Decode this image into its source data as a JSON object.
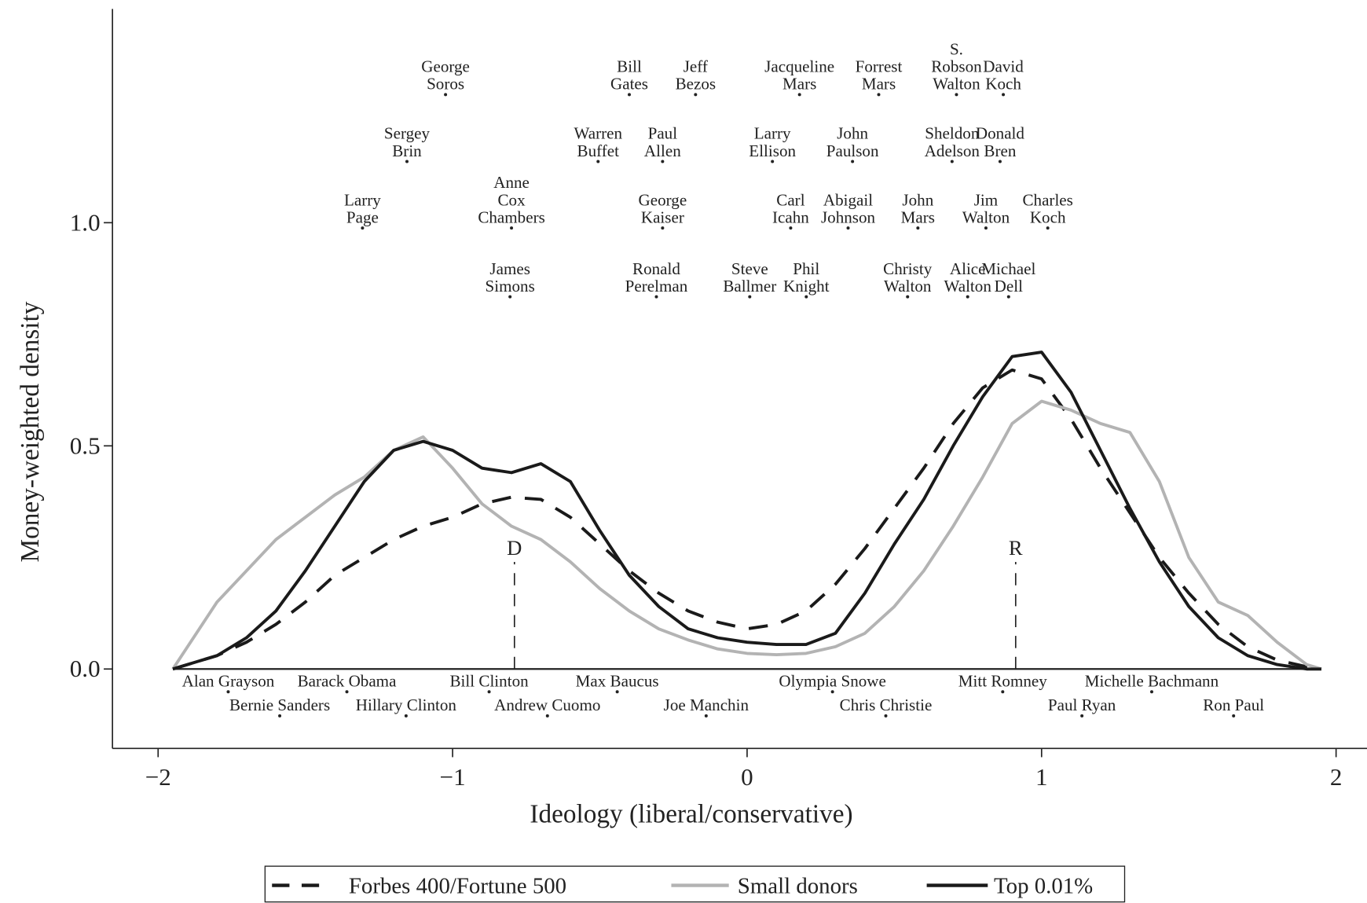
{
  "chart_data": {
    "type": "line",
    "xlabel": "Ideology (liberal/conservative)",
    "ylabel": "Money-weighted density",
    "xlim": [
      -2.155,
      2.105
    ],
    "ylim": [
      -0.178,
      1.479
    ],
    "xticks": [
      {
        "value": -2,
        "label": "−2"
      },
      {
        "value": -1,
        "label": "−1"
      },
      0,
      1,
      2
    ],
    "yticks": [
      {
        "value": 0,
        "label": "0.0"
      },
      {
        "value": 0.5,
        "label": "0.5"
      },
      {
        "value": 1,
        "label": "1.0"
      }
    ],
    "legend": "bottom",
    "x": [
      -1.95,
      -1.8,
      -1.7,
      -1.6,
      -1.5,
      -1.4,
      -1.3,
      -1.2,
      -1.1,
      -1.0,
      -0.9,
      -0.8,
      -0.7,
      -0.6,
      -0.5,
      -0.4,
      -0.3,
      -0.2,
      -0.1,
      0,
      0.1,
      0.2,
      0.3,
      0.4,
      0.5,
      0.6,
      0.7,
      0.8,
      0.9,
      1.0,
      1.1,
      1.2,
      1.3,
      1.4,
      1.5,
      1.6,
      1.7,
      1.8,
      1.9,
      1.95
    ],
    "series": [
      {
        "name": "Forbes 400/Fortune 500",
        "color": "#1a1a1a",
        "style": "dashed",
        "values": [
          0,
          0.03,
          0.06,
          0.1,
          0.15,
          0.21,
          0.25,
          0.29,
          0.32,
          0.34,
          0.37,
          0.385,
          0.38,
          0.34,
          0.28,
          0.22,
          0.17,
          0.13,
          0.105,
          0.09,
          0.1,
          0.13,
          0.19,
          0.27,
          0.36,
          0.45,
          0.55,
          0.63,
          0.67,
          0.65,
          0.56,
          0.45,
          0.35,
          0.25,
          0.17,
          0.1,
          0.05,
          0.02,
          0.005,
          0
        ]
      },
      {
        "name": "Small donors",
        "color": "#b3b3b3",
        "style": "solid",
        "values": [
          0,
          0.15,
          0.22,
          0.29,
          0.34,
          0.39,
          0.43,
          0.49,
          0.52,
          0.45,
          0.37,
          0.32,
          0.29,
          0.24,
          0.18,
          0.13,
          0.09,
          0.065,
          0.045,
          0.035,
          0.032,
          0.035,
          0.05,
          0.08,
          0.14,
          0.22,
          0.32,
          0.43,
          0.55,
          0.6,
          0.58,
          0.55,
          0.53,
          0.42,
          0.25,
          0.15,
          0.12,
          0.06,
          0.01,
          0
        ]
      },
      {
        "name": "Top 0.01%",
        "color": "#1a1a1a",
        "style": "solid",
        "values": [
          0,
          0.03,
          0.07,
          0.13,
          0.22,
          0.32,
          0.42,
          0.49,
          0.51,
          0.49,
          0.45,
          0.44,
          0.46,
          0.42,
          0.31,
          0.21,
          0.14,
          0.09,
          0.07,
          0.06,
          0.055,
          0.055,
          0.08,
          0.17,
          0.28,
          0.38,
          0.5,
          0.61,
          0.7,
          0.71,
          0.62,
          0.49,
          0.36,
          0.24,
          0.14,
          0.07,
          0.03,
          0.01,
          0,
          0
        ]
      }
    ],
    "party_means": [
      {
        "label": "D",
        "x": -0.79,
        "y": 0.24
      },
      {
        "label": "R",
        "x": 0.912,
        "y": 0.24
      }
    ],
    "points": [
      {
        "label": [
          "George",
          "Soros"
        ],
        "x": -1.024,
        "y": 1.287
      },
      {
        "label": [
          "Bill",
          "Gates"
        ],
        "x": -0.4,
        "y": 1.287
      },
      {
        "label": [
          "Jeff",
          "Bezos"
        ],
        "x": -0.175,
        "y": 1.287
      },
      {
        "label": [
          "Jacqueline",
          "Mars"
        ],
        "x": 0.178,
        "y": 1.287
      },
      {
        "label": [
          "Forrest",
          "Mars"
        ],
        "x": 0.447,
        "y": 1.287
      },
      {
        "label": [
          "S.",
          "Robson",
          "Walton"
        ],
        "x": 0.711,
        "y": 1.287
      },
      {
        "label": [
          "David",
          "Koch"
        ],
        "x": 0.87,
        "y": 1.287
      },
      {
        "label": [
          "Sergey",
          "Brin"
        ],
        "x": -1.155,
        "y": 1.137
      },
      {
        "label": [
          "Warren",
          "Buffet"
        ],
        "x": -0.506,
        "y": 1.137
      },
      {
        "label": [
          "Paul",
          "Allen"
        ],
        "x": -0.287,
        "y": 1.137
      },
      {
        "label": [
          "Larry",
          "Ellison"
        ],
        "x": 0.086,
        "y": 1.137
      },
      {
        "label": [
          "John",
          "Paulson"
        ],
        "x": 0.358,
        "y": 1.137
      },
      {
        "label": [
          "Sheldon",
          "Adelson"
        ],
        "x": 0.696,
        "y": 1.137
      },
      {
        "label": [
          "Donald",
          "Bren"
        ],
        "x": 0.859,
        "y": 1.137
      },
      {
        "label": [
          "Larry",
          "Page"
        ],
        "x": -1.306,
        "y": 0.988
      },
      {
        "label": [
          "Anne",
          "Cox",
          "Chambers"
        ],
        "x": -0.8,
        "y": 0.988
      },
      {
        "label": [
          "George",
          "Kaiser"
        ],
        "x": -0.287,
        "y": 0.988
      },
      {
        "label": [
          "Carl",
          "Icahn"
        ],
        "x": 0.148,
        "y": 0.988
      },
      {
        "label": [
          "Abigail",
          "Johnson"
        ],
        "x": 0.343,
        "y": 0.988
      },
      {
        "label": [
          "John",
          "Mars"
        ],
        "x": 0.58,
        "y": 0.988
      },
      {
        "label": [
          "Jim",
          "Walton"
        ],
        "x": 0.811,
        "y": 0.988
      },
      {
        "label": [
          "Charles",
          "Koch"
        ],
        "x": 1.021,
        "y": 0.988
      },
      {
        "label": [
          "James",
          "Simons"
        ],
        "x": -0.805,
        "y": 0.834
      },
      {
        "label": [
          "Ronald",
          "Perelman"
        ],
        "x": -0.308,
        "y": 0.834
      },
      {
        "label": [
          "Steve",
          "Ballmer"
        ],
        "x": 0.009,
        "y": 0.834
      },
      {
        "label": [
          "Phil",
          "Knight"
        ],
        "x": 0.201,
        "y": 0.834
      },
      {
        "label": [
          "Christy",
          "Walton"
        ],
        "x": 0.545,
        "y": 0.834
      },
      {
        "label": [
          "Alice",
          "Walton"
        ],
        "x": 0.749,
        "y": 0.834
      },
      {
        "label": [
          "Michael",
          "Dell"
        ],
        "x": 0.888,
        "y": 0.834
      },
      {
        "label": [
          "Alan Grayson"
        ],
        "x": -1.762,
        "y": -0.051
      },
      {
        "label": [
          "Barack Obama"
        ],
        "x": -1.359,
        "y": -0.051
      },
      {
        "label": [
          "Bill Clinton"
        ],
        "x": -0.876,
        "y": -0.051
      },
      {
        "label": [
          "Max Baucus"
        ],
        "x": -0.441,
        "y": -0.051
      },
      {
        "label": [
          "Olympia Snowe"
        ],
        "x": 0.29,
        "y": -0.051
      },
      {
        "label": [
          "Mitt Romney"
        ],
        "x": 0.868,
        "y": -0.051
      },
      {
        "label": [
          "Michelle Bachmann"
        ],
        "x": 1.374,
        "y": -0.051
      },
      {
        "label": [
          "Bernie Sanders"
        ],
        "x": -1.587,
        "y": -0.105
      },
      {
        "label": [
          "Hillary Clinton"
        ],
        "x": -1.158,
        "y": -0.105
      },
      {
        "label": [
          "Andrew Cuomo"
        ],
        "x": -0.678,
        "y": -0.105
      },
      {
        "label": [
          "Joe Manchin"
        ],
        "x": -0.139,
        "y": -0.105
      },
      {
        "label": [
          "Chris Christie"
        ],
        "x": 0.471,
        "y": -0.105
      },
      {
        "label": [
          "Paul Ryan"
        ],
        "x": 1.137,
        "y": -0.105
      },
      {
        "label": [
          "Ron Paul"
        ],
        "x": 1.652,
        "y": -0.105
      }
    ]
  }
}
